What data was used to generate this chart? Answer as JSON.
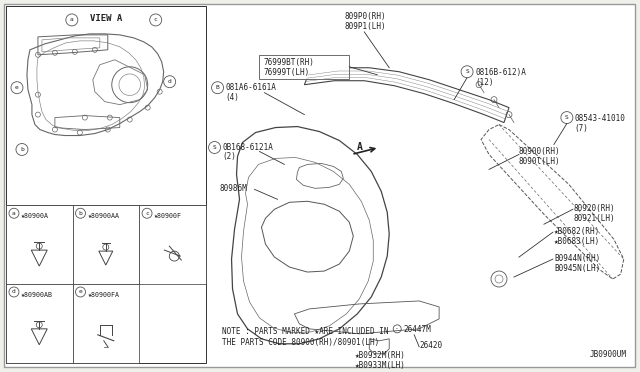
{
  "bg_color": "#f0f0eb",
  "border_color": "#444444",
  "line_color": "#333333",
  "text_color": "#222222",
  "note_line1": "NOTE : PARTS MARKED ★ARE INCLUDED IN",
  "note_line2": "THE PARTS CODE 80900(RH)/80901(LH)",
  "diagram_id": "JB0900UM",
  "view_a_label": "VIEW A"
}
